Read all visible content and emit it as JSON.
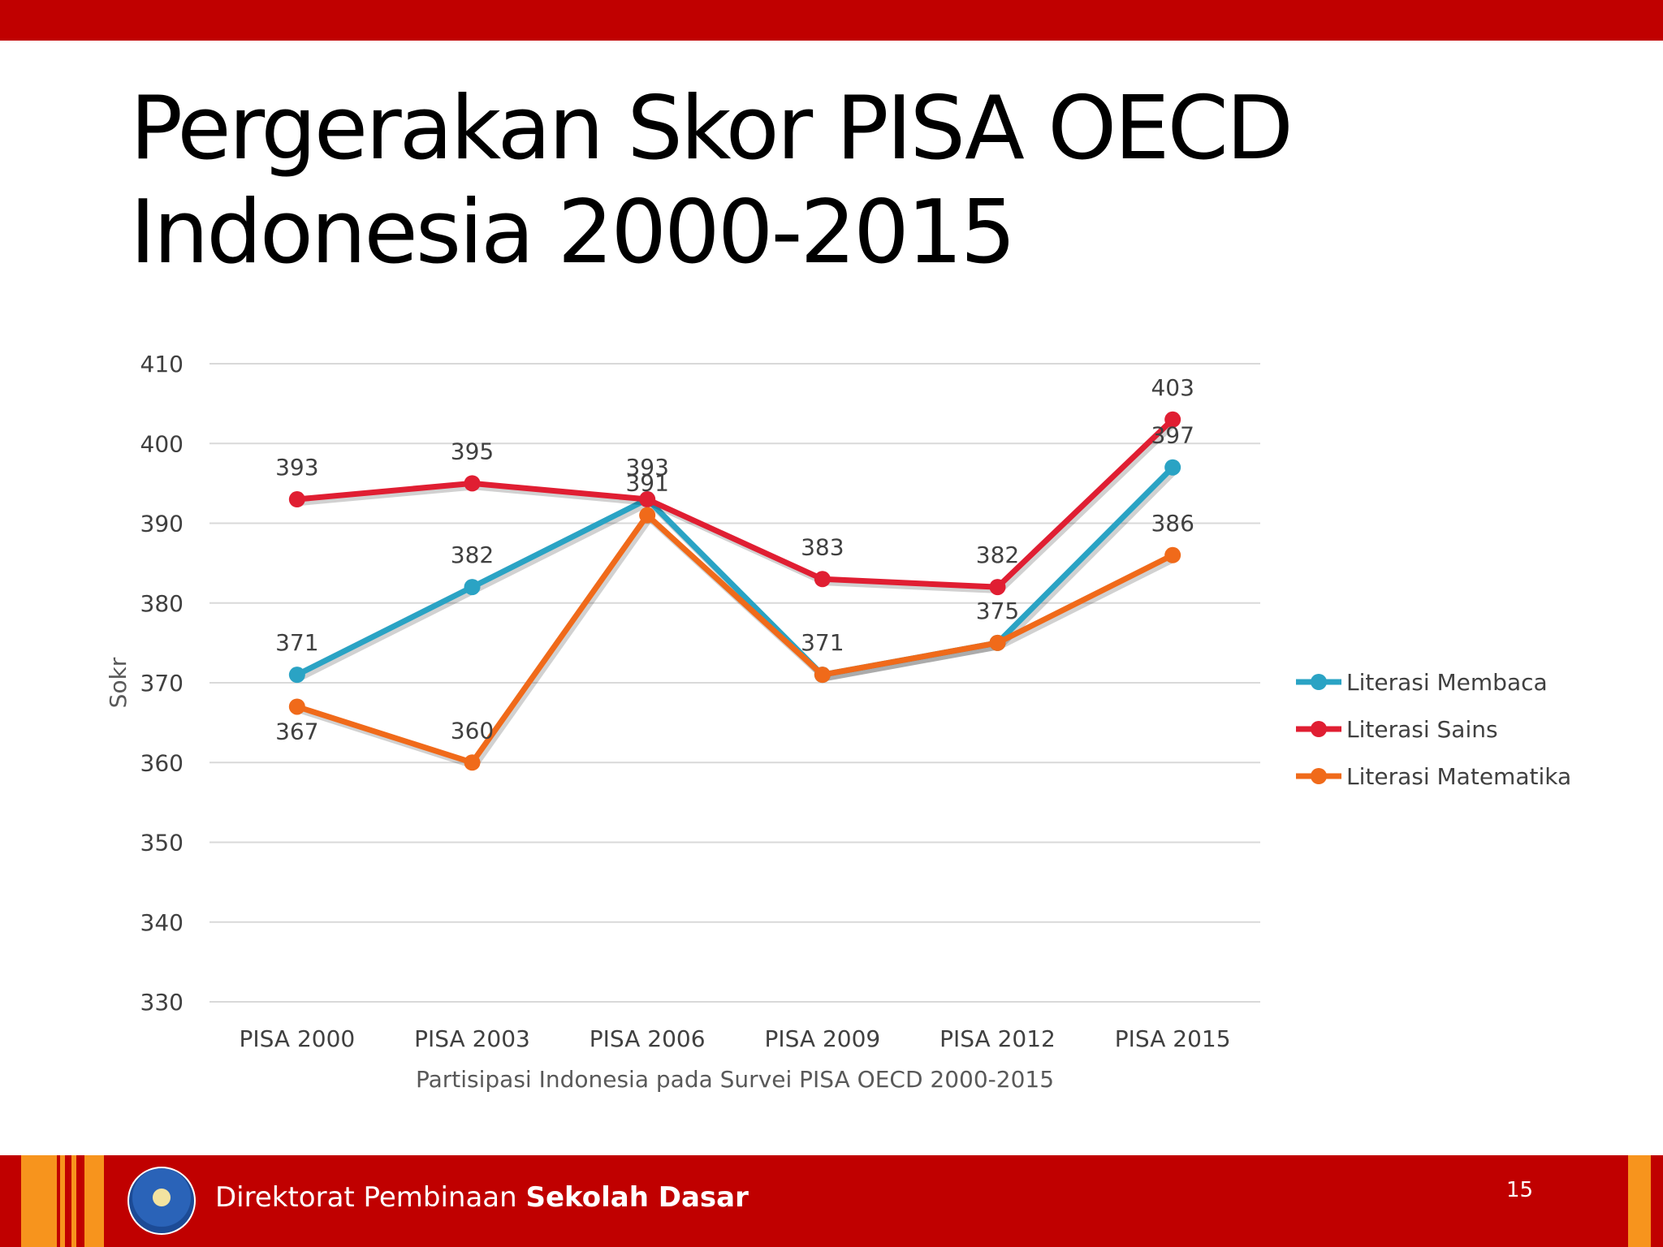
{
  "slide": {
    "title_line1": "Pergerakan Skor PISA OECD",
    "title_line2": "Indonesia 2000-2015",
    "footer_prefix": "Direktorat Pembinaan",
    "footer_bold": "Sekolah Dasar",
    "page_number": "15"
  },
  "colors": {
    "header_bar": "#c00000",
    "footer_bar": "#c00000",
    "footer_stripe": "#f7941d"
  },
  "chart_data": {
    "type": "line",
    "title": "",
    "xlabel": "Partisipasi Indonesia pada Survei PISA OECD 2000-2015",
    "ylabel": "Sokr",
    "categories": [
      "PISA 2000",
      "PISA 2003",
      "PISA 2006",
      "PISA 2009",
      "PISA 2012",
      "PISA 2015"
    ],
    "ylim": [
      330,
      410
    ],
    "yticks": [
      330,
      340,
      350,
      360,
      370,
      380,
      390,
      400,
      410
    ],
    "grid": true,
    "legend_position": "right",
    "series": [
      {
        "name": "Literasi Membaca",
        "color": "#2aa3c4",
        "values": [
          371,
          382,
          393,
          371,
          375,
          397
        ]
      },
      {
        "name": "Literasi Sains",
        "color": "#e01e32",
        "values": [
          393,
          395,
          393,
          383,
          382,
          403
        ]
      },
      {
        "name": "Literasi Matematika",
        "color": "#f06a1a",
        "values": [
          367,
          360,
          391,
          371,
          375,
          386
        ]
      }
    ],
    "data_labels": [
      {
        "category": "PISA 2000",
        "text": "393"
      },
      {
        "category": "PISA 2000",
        "text": "371"
      },
      {
        "category": "PISA 2000",
        "text": "367"
      },
      {
        "category": "PISA 2003",
        "text": "395"
      },
      {
        "category": "PISA 2003",
        "text": "382"
      },
      {
        "category": "PISA 2003",
        "text": "360"
      },
      {
        "category": "PISA 2006",
        "text": "393"
      },
      {
        "category": "PISA 2006",
        "text": "391"
      },
      {
        "category": "PISA 2009",
        "text": "383"
      },
      {
        "category": "PISA 2009",
        "text": "371"
      },
      {
        "category": "PISA 2012",
        "text": "382"
      },
      {
        "category": "PISA 2012",
        "text": "375"
      },
      {
        "category": "PISA 2015",
        "text": "403"
      },
      {
        "category": "PISA 2015",
        "text": "397"
      },
      {
        "category": "PISA 2015",
        "text": "386"
      }
    ]
  }
}
